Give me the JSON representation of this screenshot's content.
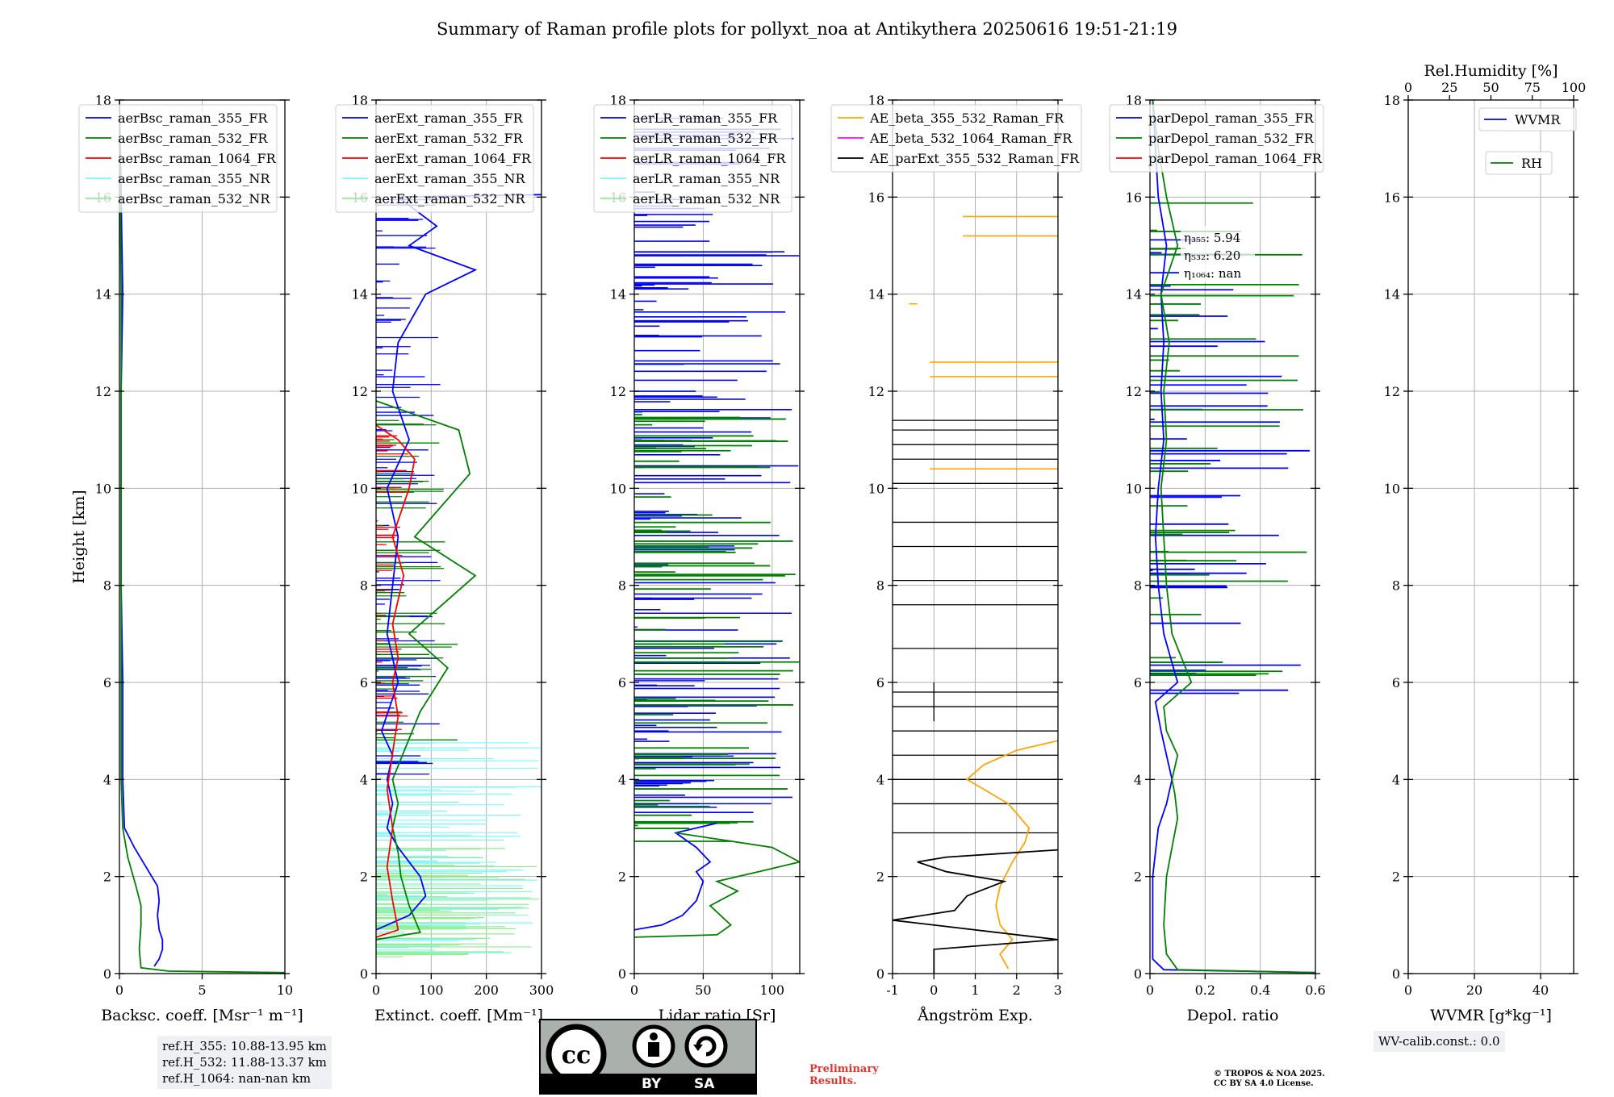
{
  "title": "Summary of Raman profile plots for pollyxt_noa at Antikythera 20250616 19:51-21:19",
  "colors": {
    "blue": "#0000ff",
    "green": "#008000",
    "red": "#ff0000",
    "cyan": "#7ff7f7",
    "lightgreen": "#90ee90",
    "orange": "#ffa500",
    "magenta": "#ff00ff",
    "black": "#000000"
  },
  "chart_data": [
    {
      "id": "backscatter",
      "type": "line",
      "xlabel": "Backsc. coeff. [Msr⁻¹ m⁻¹]",
      "ylabel": "Height [km]",
      "xlim": [
        0,
        10
      ],
      "ylim": [
        0,
        18
      ],
      "xticks": [
        0,
        5,
        10
      ],
      "yticks": [
        0,
        2,
        4,
        6,
        8,
        10,
        12,
        14,
        16,
        18
      ],
      "legend": {
        "placement": "top",
        "entries": [
          "aerBsc_raman_355_FR",
          "aerBsc_raman_532_FR",
          "aerBsc_raman_1064_FR",
          "aerBsc_raman_355_NR",
          "aerBsc_raman_532_NR"
        ]
      },
      "series": [
        {
          "name": "aerBsc_raman_355_FR",
          "color": "blue",
          "points": [
            [
              2.1,
              0.15
            ],
            [
              2.4,
              0.3
            ],
            [
              2.6,
              0.5
            ],
            [
              2.6,
              0.7
            ],
            [
              2.4,
              0.9
            ],
            [
              2.3,
              1.2
            ],
            [
              2.4,
              1.5
            ],
            [
              2.3,
              1.8
            ],
            [
              1.6,
              2.2
            ],
            [
              0.9,
              2.6
            ],
            [
              0.3,
              3.0
            ],
            [
              0.2,
              4
            ],
            [
              0.2,
              6
            ],
            [
              0.1,
              8
            ],
            [
              0.1,
              10
            ],
            [
              0.1,
              12
            ],
            [
              0.2,
              14
            ],
            [
              0.1,
              16
            ],
            [
              0,
              18
            ]
          ]
        },
        {
          "name": "aerBsc_raman_532_FR",
          "color": "green",
          "points": [
            [
              10,
              0.02
            ],
            [
              3,
              0.05
            ],
            [
              1.3,
              0.12
            ],
            [
              1.2,
              0.5
            ],
            [
              1.3,
              1.0
            ],
            [
              1.3,
              1.4
            ],
            [
              1.0,
              1.8
            ],
            [
              0.5,
              2.4
            ],
            [
              0.2,
              3.0
            ],
            [
              0.1,
              4
            ],
            [
              0.1,
              6
            ],
            [
              0.1,
              10
            ],
            [
              0.1,
              14
            ],
            [
              0,
              18
            ]
          ]
        }
      ]
    },
    {
      "id": "extinction",
      "type": "line",
      "xlabel": "Extinct. coeff. [Mm⁻¹]",
      "xlim": [
        0,
        300
      ],
      "ylim": [
        0,
        18
      ],
      "xticks": [
        0,
        100,
        200,
        300
      ],
      "yticks": [
        0,
        2,
        4,
        6,
        8,
        10,
        12,
        14,
        16,
        18
      ],
      "legend": {
        "placement": "top",
        "entries": [
          "aerExt_raman_355_FR",
          "aerExt_raman_532_FR",
          "aerExt_raman_1064_FR",
          "aerExt_raman_355_NR",
          "aerExt_raman_532_NR"
        ]
      },
      "series": [
        {
          "name": "aerExt_raman_355_FR",
          "color": "blue",
          "points": [
            [
              0,
              0.9
            ],
            [
              60,
              1.2
            ],
            [
              90,
              1.6
            ],
            [
              80,
              2.0
            ],
            [
              40,
              2.6
            ],
            [
              20,
              3.0
            ],
            [
              30,
              3.5
            ],
            [
              20,
              4.0
            ],
            [
              30,
              4.5
            ],
            [
              10,
              5
            ],
            [
              40,
              6
            ],
            [
              20,
              7
            ],
            [
              30,
              8
            ],
            [
              40,
              9
            ],
            [
              20,
              10
            ],
            [
              60,
              11
            ],
            [
              30,
              12
            ],
            [
              40,
              13
            ],
            [
              90,
              14
            ],
            [
              180,
              14.5
            ],
            [
              60,
              15
            ],
            [
              110,
              15.4
            ],
            [
              40,
              16
            ],
            [
              300,
              16.05
            ]
          ]
        },
        {
          "name": "aerExt_raman_532_FR",
          "color": "green",
          "points": [
            [
              0,
              0.7
            ],
            [
              80,
              0.85
            ],
            [
              60,
              1.4
            ],
            [
              45,
              2.0
            ],
            [
              40,
              2.5
            ],
            [
              30,
              3.0
            ],
            [
              40,
              3.5
            ],
            [
              30,
              4.0
            ],
            [
              80,
              5.4
            ],
            [
              130,
              6.3
            ],
            [
              60,
              7
            ],
            [
              180,
              8.2
            ],
            [
              70,
              9
            ],
            [
              170,
              10.3
            ],
            [
              150,
              11.2
            ],
            [
              0,
              11.8
            ]
          ]
        },
        {
          "name": "aerExt_raman_1064_FR",
          "color": "red",
          "points": [
            [
              0,
              0.75
            ],
            [
              40,
              0.9
            ],
            [
              30,
              1.5
            ],
            [
              20,
              2.2
            ],
            [
              30,
              3.0
            ],
            [
              20,
              3.8
            ],
            [
              40,
              5.3
            ],
            [
              30,
              6.0
            ],
            [
              40,
              6.5
            ],
            [
              30,
              7.2
            ],
            [
              50,
              8.2
            ],
            [
              30,
              9.0
            ],
            [
              60,
              10.0
            ],
            [
              70,
              10.6
            ],
            [
              40,
              11.0
            ],
            [
              0,
              11.3
            ]
          ]
        }
      ]
    },
    {
      "id": "lidar-ratio",
      "type": "line",
      "xlabel": "Lidar ratio [Sr]",
      "xlim": [
        0,
        120
      ],
      "ylim": [
        0,
        18
      ],
      "xticks": [
        0,
        50,
        100
      ],
      "yticks": [
        0,
        2,
        4,
        6,
        8,
        10,
        12,
        14,
        16,
        18
      ],
      "legend": {
        "placement": "top",
        "entries": [
          "aerLR_raman_355_FR",
          "aerLR_raman_532_FR",
          "aerLR_raman_1064_FR",
          "aerLR_raman_355_NR",
          "aerLR_raman_532_NR"
        ]
      },
      "series": [
        {
          "name": "aerLR_raman_355_FR",
          "color": "blue",
          "points": [
            [
              0,
              0.9
            ],
            [
              20,
              1.0
            ],
            [
              35,
              1.2
            ],
            [
              45,
              1.5
            ],
            [
              50,
              1.9
            ],
            [
              45,
              2.1
            ],
            [
              55,
              2.3
            ],
            [
              45,
              2.6
            ],
            [
              30,
              2.9
            ],
            [
              60,
              3.1
            ]
          ]
        },
        {
          "name": "aerLR_raman_532_FR",
          "color": "green",
          "points": [
            [
              0,
              0.75
            ],
            [
              60,
              0.8
            ],
            [
              70,
              1.0
            ],
            [
              55,
              1.4
            ],
            [
              75,
              1.7
            ],
            [
              60,
              1.9
            ],
            [
              90,
              2.1
            ],
            [
              120,
              2.3
            ],
            [
              100,
              2.6
            ],
            [
              30,
              2.9
            ]
          ]
        }
      ]
    },
    {
      "id": "angstrom",
      "type": "line",
      "xlabel": "Ångström Exp.",
      "xlim": [
        -1,
        3
      ],
      "ylim": [
        0,
        18
      ],
      "xticks": [
        -1,
        0,
        1,
        2,
        3
      ],
      "yticks": [
        0,
        2,
        4,
        6,
        8,
        10,
        12,
        14,
        16,
        18
      ],
      "legend": {
        "placement": "top",
        "entries": [
          "AE_beta_355_532_Raman_FR",
          "AE_beta_532_1064_Raman_FR",
          "AE_parExt_355_532_Raman_FR"
        ]
      },
      "series": [
        {
          "name": "AE_beta_355_532_Raman_FR",
          "color": "orange",
          "points": [
            [
              1.8,
              0.1
            ],
            [
              1.6,
              0.4
            ],
            [
              1.9,
              0.7
            ],
            [
              1.6,
              1.0
            ],
            [
              1.5,
              1.4
            ],
            [
              1.6,
              1.8
            ],
            [
              1.9,
              2.3
            ],
            [
              2.2,
              2.7
            ],
            [
              2.3,
              3.0
            ],
            [
              1.8,
              3.5
            ],
            [
              1.2,
              3.8
            ],
            [
              0.8,
              4.0
            ],
            [
              1.2,
              4.3
            ],
            [
              2.0,
              4.6
            ],
            [
              3.0,
              4.8
            ]
          ]
        },
        {
          "name": "AE_parExt_355_532_Raman_FR",
          "color": "black",
          "points": [
            [
              0,
              0
            ],
            [
              0,
              0.5
            ],
            [
              3,
              0.7
            ],
            [
              -1,
              1.1
            ],
            [
              0.5,
              1.3
            ],
            [
              0.8,
              1.6
            ],
            [
              1.7,
              1.9
            ],
            [
              0.3,
              2.1
            ],
            [
              -0.4,
              2.3
            ],
            [
              0.3,
              2.4
            ],
            [
              3,
              2.55
            ]
          ]
        }
      ]
    },
    {
      "id": "depolarization",
      "type": "line",
      "xlabel": "Depol. ratio",
      "xlim": [
        0,
        0.6
      ],
      "ylim": [
        0,
        18
      ],
      "xticks": [
        0.0,
        0.2,
        0.4,
        0.6
      ],
      "yticks": [
        0,
        2,
        4,
        6,
        8,
        10,
        12,
        14,
        16,
        18
      ],
      "legend": {
        "placement": "top",
        "entries": [
          "parDepol_raman_355_FR",
          "parDepol_raman_532_FR",
          "parDepol_raman_1064_FR"
        ]
      },
      "annotations": [
        "η₃₅₅: 5.94",
        "η₅₃₂: 6.20",
        "η₁₀₆₄: nan"
      ],
      "series": [
        {
          "name": "parDepol_raman_355_FR",
          "color": "blue",
          "points": [
            [
              0.6,
              0.02
            ],
            [
              0.05,
              0.08
            ],
            [
              0.01,
              0.3
            ],
            [
              0.01,
              1
            ],
            [
              0.01,
              2
            ],
            [
              0.02,
              2.5
            ],
            [
              0.03,
              3
            ],
            [
              0.06,
              3.5
            ],
            [
              0.08,
              4
            ],
            [
              0.06,
              4.5
            ],
            [
              0.04,
              5
            ],
            [
              0.02,
              5.6
            ],
            [
              0.1,
              6
            ],
            [
              0.05,
              7
            ],
            [
              0.03,
              8
            ],
            [
              0.02,
              9
            ],
            [
              0.03,
              10
            ],
            [
              0.05,
              11
            ],
            [
              0.04,
              12
            ],
            [
              0.05,
              13
            ],
            [
              0.04,
              14
            ],
            [
              0.06,
              15
            ],
            [
              0.03,
              16
            ],
            [
              0.02,
              17
            ],
            [
              0.01,
              18
            ]
          ]
        },
        {
          "name": "parDepol_raman_532_FR",
          "color": "green",
          "points": [
            [
              0.6,
              0.02
            ],
            [
              0.1,
              0.08
            ],
            [
              0.06,
              0.4
            ],
            [
              0.05,
              1
            ],
            [
              0.06,
              2
            ],
            [
              0.08,
              2.6
            ],
            [
              0.1,
              3.2
            ],
            [
              0.09,
              3.7
            ],
            [
              0.08,
              4.0
            ],
            [
              0.1,
              4.5
            ],
            [
              0.06,
              5
            ],
            [
              0.05,
              5.5
            ],
            [
              0.15,
              6
            ],
            [
              0.08,
              7
            ],
            [
              0.06,
              8
            ],
            [
              0.05,
              9
            ],
            [
              0.04,
              10
            ],
            [
              0.06,
              11
            ],
            [
              0.05,
              12
            ],
            [
              0.07,
              13
            ],
            [
              0.04,
              14
            ],
            [
              0.1,
              15
            ],
            [
              0.06,
              16
            ],
            [
              0.03,
              17
            ],
            [
              0.01,
              18
            ]
          ]
        }
      ]
    },
    {
      "id": "wvmr",
      "type": "line",
      "xlabel": "WVMR [g*kg⁻¹]",
      "xlim": [
        0,
        50
      ],
      "ylim": [
        0,
        18
      ],
      "xticks": [
        0,
        20,
        40
      ],
      "yticks": [
        0,
        2,
        4,
        6,
        8,
        10,
        12,
        14,
        16,
        18
      ],
      "x2label": "Rel.Humidity [%]",
      "x2lim": [
        0,
        100
      ],
      "x2ticks": [
        0,
        25,
        50,
        75,
        100
      ],
      "legend": {
        "placement": "top-right",
        "entries": [
          "WVMR",
          "RH"
        ]
      },
      "series": []
    }
  ],
  "footer": {
    "ref_lines": [
      "ref.H_355: 10.88-13.95 km",
      "ref.H_532: 11.88-13.37 km",
      "ref.H_1064: nan-nan km"
    ],
    "preliminary": [
      "Preliminary",
      "Results."
    ],
    "copyright": [
      "© TROPOS & NOA 2025.",
      "CC BY SA 4.0 License."
    ],
    "wv_calib": "WV-calib.const.: 0.0",
    "license_badge": {
      "by": "BY",
      "sa": "SA"
    }
  }
}
